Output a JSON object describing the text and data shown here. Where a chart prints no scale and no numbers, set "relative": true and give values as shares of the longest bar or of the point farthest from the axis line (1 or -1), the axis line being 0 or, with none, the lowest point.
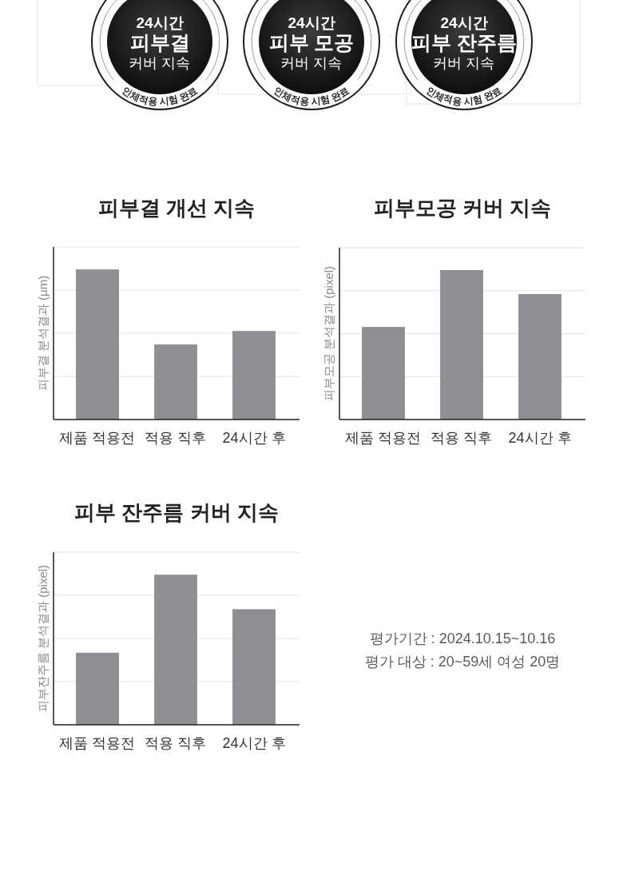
{
  "chart_data": [
    {
      "type": "other",
      "annotations": [
        "24시간",
        "피부결",
        "커버 지속",
        "인체적용 시험 완료",
        "24시간",
        "피부 모공",
        "커버 지속",
        "인체적용 시험 완료",
        "24시간",
        "피부 잔주름",
        "커버 지속",
        "인체적용 시험 완료"
      ]
    },
    {
      "type": "bar",
      "title": "피부결 개선 지속",
      "ylabel": "피부결 분석결과 (μm)",
      "categories": [
        "제품 적용전",
        "적용 직후",
        "24시간 후"
      ],
      "values": [
        1,
        0.5,
        0.59
      ],
      "color": "#8e8f93",
      "relative": true,
      "grid": "y"
    },
    {
      "type": "bar",
      "title": "피부모공 커버 지속",
      "ylabel": "피부모공 분석결과 (pixel)",
      "categories": [
        "제품 적용전",
        "적용 직후",
        "24시간 후"
      ],
      "values": [
        0.62,
        1,
        0.84
      ],
      "color": "#8e8f93",
      "relative": true,
      "grid": "y"
    },
    {
      "type": "bar",
      "title": "피부 잔주름 커버 지속",
      "ylabel": "피부잔주름 분석결과 (pixel)",
      "categories": [
        "제품 적용전",
        "적용 직후",
        "24시간 후"
      ],
      "values": [
        0.48,
        1,
        0.77
      ],
      "color": "#8e8f93",
      "relative": true,
      "grid": "y"
    },
    {
      "type": "other",
      "annotations": [
        "평가기간 : 2024.10.15~10.16",
        "평가 대상 : 20~59세 여성 20명"
      ]
    }
  ]
}
